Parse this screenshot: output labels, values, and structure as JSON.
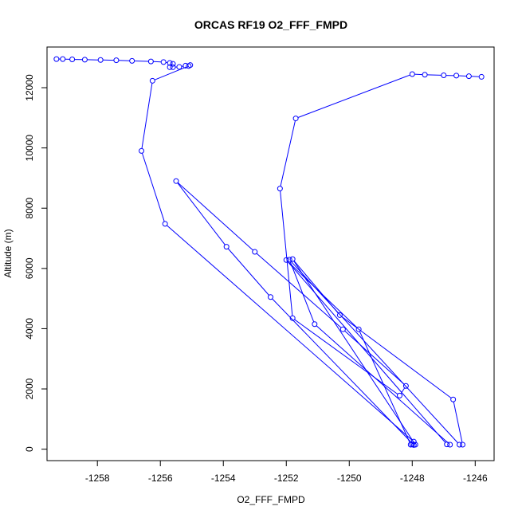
{
  "chart_data": {
    "type": "line",
    "title": "ORCAS RF19 O2_FFF_FMPD",
    "xlabel": "O2_FFF_FMPD",
    "ylabel": "Altitude (m)",
    "xlim": [
      -1259.6,
      -1245.4
    ],
    "ylim": [
      -380,
      13350
    ],
    "xticks": [
      -1258,
      -1256,
      -1254,
      -1252,
      -1250,
      -1248,
      -1246
    ],
    "yticks": [
      0,
      2000,
      4000,
      6000,
      8000,
      10000,
      12000
    ],
    "grid": false,
    "legend": "none",
    "marker": "open-circle",
    "line_color": "#0000ff",
    "series": [
      {
        "x": [
          -1259.3,
          -1259.1,
          -1258.8,
          -1258.4,
          -1257.9,
          -1257.4,
          -1256.9,
          -1256.3,
          -1255.9,
          -1255.7,
          -1255.6,
          -1255.7,
          -1255.6,
          -1255.4,
          -1255.2,
          -1255.05,
          -1255.1,
          -1256.25,
          -1256.6,
          -1255.85,
          -1247.95,
          -1248.0,
          -1247.9,
          -1251.8,
          -1250.3,
          -1246.7,
          -1246.4,
          -1246.5,
          -1251.9,
          -1251.1,
          -1246.8,
          -1246.9,
          -1252.0,
          -1249.7,
          -1248.05,
          -1247.95,
          -1252.5,
          -1253.9,
          -1255.5,
          -1253.0,
          -1250.2,
          -1248.2,
          -1248.4,
          -1251.8,
          -1252.2,
          -1251.7,
          -1248.0,
          -1247.6,
          -1247.0,
          -1246.6,
          -1246.2,
          -1245.8
        ]
      }
    ],
    "y_values": [
      12950,
      12950,
      12940,
      12930,
      12920,
      12910,
      12890,
      12870,
      12850,
      12820,
      12790,
      12680,
      12680,
      12690,
      12730,
      12750,
      12720,
      12230,
      9900,
      7480,
      250,
      160,
      150,
      6310,
      4450,
      1650,
      150,
      150,
      6290,
      4150,
      150,
      160,
      6280,
      3980,
      150,
      140,
      5050,
      6720,
      8900,
      6550,
      3980,
      2100,
      1780,
      4350,
      8650,
      10980,
      12450,
      12430,
      12410,
      12400,
      12380,
      12360
    ]
  }
}
